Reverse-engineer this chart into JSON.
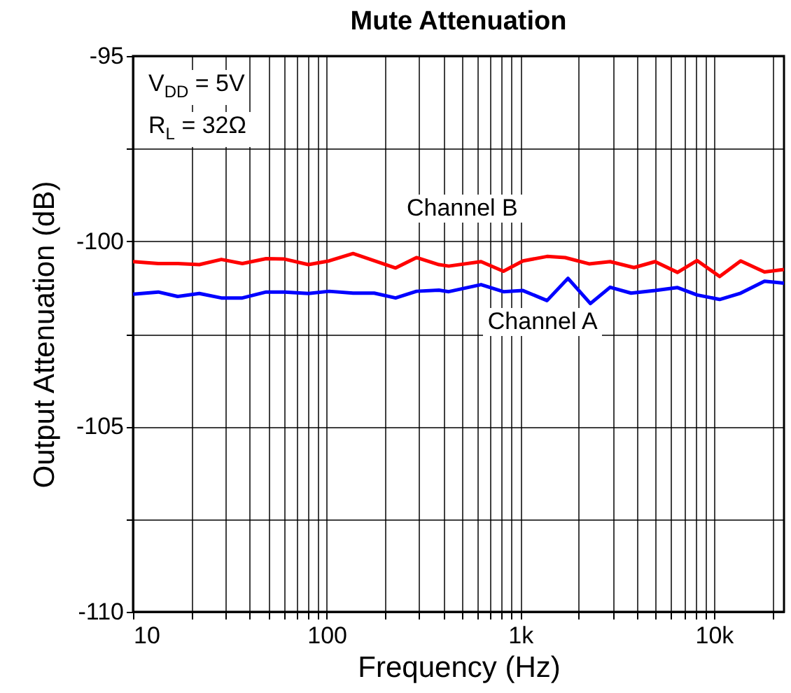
{
  "chart_data": {
    "type": "line",
    "title": "Mute Attenuation",
    "xlabel": "Frequency (Hz)",
    "ylabel": "Output Attenuation (dB)",
    "log": "x",
    "grid": true,
    "legend": false,
    "marker": "none",
    "line_style": "solid",
    "xlim": [
      10,
      23000
    ],
    "xticks": [
      10,
      {
        "value": 20,
        "label": null
      },
      {
        "value": 30,
        "label": null
      },
      {
        "value": 40,
        "label": null
      },
      {
        "value": 50,
        "label": null
      },
      {
        "value": 60,
        "label": null
      },
      {
        "value": 70,
        "label": null
      },
      {
        "value": 80,
        "label": null
      },
      {
        "value": 90,
        "label": null
      },
      100,
      {
        "value": 200,
        "label": null
      },
      {
        "value": 300,
        "label": null
      },
      {
        "value": 400,
        "label": null
      },
      {
        "value": 500,
        "label": null
      },
      {
        "value": 600,
        "label": null
      },
      {
        "value": 700,
        "label": null
      },
      {
        "value": 800,
        "label": null
      },
      {
        "value": 900,
        "label": null
      },
      {
        "value": 1000,
        "label": "1k"
      },
      {
        "value": 2000,
        "label": null
      },
      {
        "value": 3000,
        "label": null
      },
      {
        "value": 4000,
        "label": null
      },
      {
        "value": 5000,
        "label": null
      },
      {
        "value": 6000,
        "label": null
      },
      {
        "value": 7000,
        "label": null
      },
      {
        "value": 8000,
        "label": null
      },
      {
        "value": 9000,
        "label": null
      },
      {
        "value": 10000,
        "label": "10k"
      },
      {
        "value": 20000,
        "label": null
      }
    ],
    "ylim": [
      -110,
      -95
    ],
    "yticks": [
      -110,
      {
        "value": -107.5,
        "label": null
      },
      -105,
      {
        "value": -102.5,
        "label": null
      },
      -100,
      {
        "value": -97.5,
        "label": null
      },
      -95
    ],
    "series": [
      {
        "name": "Channel B",
        "color": "#ff0000",
        "x": [
          10,
          13.5,
          17,
          22,
          28.6,
          36.7,
          48.7,
          60.6,
          80.5,
          103,
          137,
          227,
          291,
          380,
          427,
          627,
          818,
          1032,
          1374,
          1706,
          2265,
          2910,
          3865,
          4966,
          6486,
          8185,
          10700,
          13740,
          18240,
          23000
        ],
        "values": [
          -100.55,
          -100.6,
          -100.6,
          -100.63,
          -100.49,
          -100.6,
          -100.47,
          -100.48,
          -100.63,
          -100.53,
          -100.33,
          -100.72,
          -100.44,
          -100.63,
          -100.67,
          -100.55,
          -100.81,
          -100.53,
          -100.41,
          -100.44,
          -100.61,
          -100.55,
          -100.71,
          -100.55,
          -100.84,
          -100.52,
          -100.95,
          -100.53,
          -100.83,
          -100.76
        ]
      },
      {
        "name": "Channel A",
        "color": "#0000ff",
        "x": [
          10,
          13.5,
          17,
          22,
          28.6,
          36.7,
          48.7,
          60.6,
          80.5,
          103,
          137,
          176,
          227,
          291,
          380,
          427,
          627,
          818,
          1032,
          1374,
          1763,
          2301,
          2910,
          3733,
          4966,
          6486,
          8185,
          10700,
          13740,
          18240,
          23000
        ],
        "values": [
          -101.43,
          -101.37,
          -101.49,
          -101.41,
          -101.53,
          -101.53,
          -101.37,
          -101.37,
          -101.41,
          -101.35,
          -101.4,
          -101.4,
          -101.53,
          -101.35,
          -101.32,
          -101.36,
          -101.17,
          -101.36,
          -101.33,
          -101.6,
          -101.0,
          -101.68,
          -101.24,
          -101.4,
          -101.33,
          -101.25,
          -101.45,
          -101.57,
          -101.4,
          -101.08,
          -101.13
        ]
      }
    ],
    "annotations": [
      "V$_{DD}$ = 5V",
      "R$_{L}$ = 32Ω"
    ]
  }
}
